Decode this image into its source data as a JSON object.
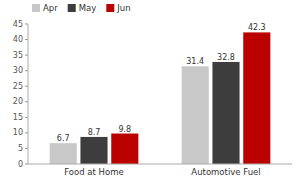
{
  "chart_data": {
    "type": "bar",
    "categories": [
      "Food at Home",
      "Automotive Fuel"
    ],
    "series": [
      {
        "name": "Apr",
        "color": "#c8c8c8",
        "values": [
          6.7,
          31.4
        ]
      },
      {
        "name": "May",
        "color": "#3d3d3d",
        "values": [
          8.7,
          32.8
        ]
      },
      {
        "name": "Jun",
        "color": "#bb0000",
        "values": [
          9.8,
          42.3
        ]
      }
    ],
    "ylim": [
      0,
      45
    ],
    "yticks": [
      0,
      5,
      10,
      15,
      20,
      25,
      30,
      35,
      40,
      45
    ],
    "grid": false,
    "legend": "upper left",
    "data_labels": true
  }
}
